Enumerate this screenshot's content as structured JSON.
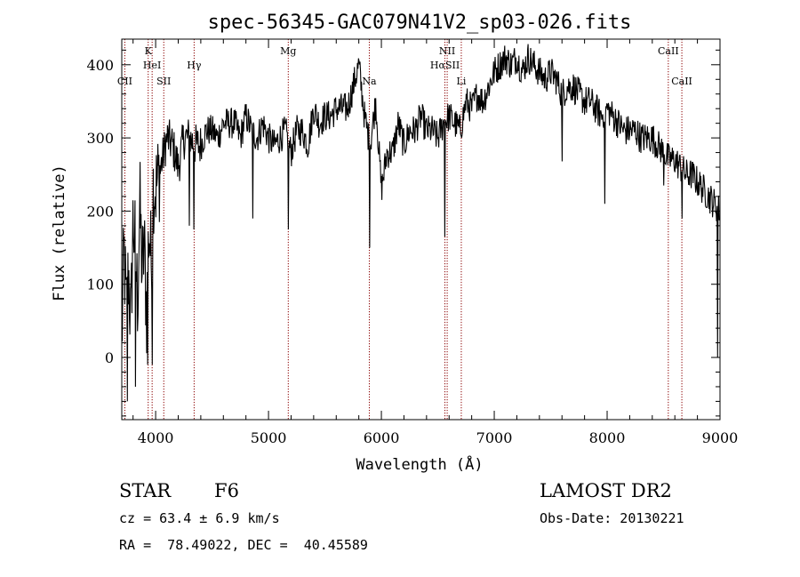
{
  "chart_data": {
    "type": "line",
    "title": "spec-56345-GAC079N41V2_sp03-026.fits",
    "xlabel": "Wavelength (Å)",
    "ylabel": "Flux (relative)",
    "xlim": [
      3700,
      9000
    ],
    "ylim": [
      -85,
      435
    ],
    "x_ticks": [
      4000,
      5000,
      6000,
      7000,
      8000,
      9000
    ],
    "y_ticks": [
      0,
      100,
      200,
      300,
      400
    ],
    "grid": false,
    "series": [
      {
        "x": [
          3700,
          3720,
          3740,
          3760,
          3780,
          3800,
          3820,
          3840,
          3860,
          3880,
          3900,
          3920,
          3940,
          3960,
          3980,
          4000,
          4030,
          4060,
          4100,
          4150,
          4200,
          4250,
          4300,
          4350,
          4400,
          4450,
          4500,
          4550,
          4600,
          4650,
          4700,
          4750,
          4800,
          4850,
          4900,
          4950,
          5000,
          5050,
          5100,
          5150,
          5200,
          5250,
          5300,
          5350,
          5400,
          5450,
          5500,
          5550,
          5600,
          5650,
          5700,
          5750,
          5800,
          5850,
          5900,
          5950,
          6000,
          6050,
          6100,
          6150,
          6200,
          6250,
          6300,
          6350,
          6400,
          6450,
          6500,
          6550,
          6600,
          6650,
          6700,
          6750,
          6800,
          6850,
          6900,
          6950,
          7000,
          7050,
          7100,
          7150,
          7200,
          7250,
          7300,
          7350,
          7400,
          7450,
          7500,
          7550,
          7600,
          7650,
          7700,
          7750,
          7800,
          7850,
          7900,
          7950,
          8000,
          8050,
          8100,
          8150,
          8200,
          8250,
          8300,
          8350,
          8400,
          8450,
          8500,
          8550,
          8600,
          8650,
          8700,
          8750,
          8800,
          8850,
          8900,
          8950,
          9000
        ],
        "values": [
          20,
          150,
          60,
          120,
          40,
          190,
          150,
          80,
          210,
          120,
          150,
          60,
          180,
          130,
          240,
          230,
          250,
          270,
          300,
          290,
          260,
          300,
          300,
          290,
          290,
          310,
          310,
          300,
          320,
          320,
          320,
          300,
          330,
          310,
          300,
          320,
          300,
          290,
          300,
          310,
          280,
          310,
          310,
          290,
          340,
          320,
          330,
          330,
          340,
          340,
          340,
          370,
          400,
          330,
          290,
          350,
          230,
          280,
          280,
          320,
          290,
          310,
          310,
          330,
          310,
          310,
          300,
          320,
          330,
          320,
          310,
          350,
          340,
          360,
          350,
          370,
          390,
          400,
          410,
          400,
          410,
          390,
          410,
          400,
          390,
          380,
          390,
          380,
          360,
          370,
          370,
          360,
          350,
          350,
          340,
          330,
          340,
          330,
          320,
          310,
          310,
          310,
          300,
          300,
          300,
          290,
          280,
          270,
          270,
          260,
          250,
          250,
          240,
          230,
          220,
          210,
          200
        ]
      }
    ],
    "spectral_lines": [
      {
        "label": "CII",
        "x": 3727,
        "row": 3
      },
      {
        "label": "K",
        "x": 3934,
        "row": 1
      },
      {
        "label": "HeI",
        "x": 3969,
        "row": 2
      },
      {
        "label": "SII",
        "x": 4072,
        "row": 3
      },
      {
        "label": "Hγ",
        "x": 4341,
        "row": 2
      },
      {
        "label": "Mg",
        "x": 5175,
        "row": 1
      },
      {
        "label": "Na",
        "x": 5893,
        "row": 3
      },
      {
        "label": "NII",
        "x": 6583,
        "row": 1
      },
      {
        "label": "HαSII",
        "x": 6563,
        "row": 2
      },
      {
        "label": "Li",
        "x": 6708,
        "row": 3
      },
      {
        "label": "CaII",
        "x": 8542,
        "row": 1
      },
      {
        "label": "CaII",
        "x": 8662,
        "row": 3
      }
    ],
    "absorption_dips": [
      {
        "x": 3750,
        "value": -60
      },
      {
        "x": 3820,
        "value": -40
      },
      {
        "x": 3930,
        "value": -10
      },
      {
        "x": 3970,
        "value": -10
      },
      {
        "x": 4300,
        "value": 180
      },
      {
        "x": 4340,
        "value": 175
      },
      {
        "x": 4860,
        "value": 190
      },
      {
        "x": 5175,
        "value": 175
      },
      {
        "x": 5895,
        "value": 150
      },
      {
        "x": 6563,
        "value": 165
      },
      {
        "x": 7600,
        "value": 268
      },
      {
        "x": 7980,
        "value": 210
      },
      {
        "x": 8500,
        "value": 235
      },
      {
        "x": 8662,
        "value": 190
      },
      {
        "x": 8980,
        "value": 0
      }
    ]
  },
  "info": {
    "object_class": "STAR",
    "subclass": "F6",
    "survey": "LAMOST DR2",
    "redshift_line": "cz = 63.4 ± 6.9 km/s",
    "obs_date": "Obs-Date: 20130221",
    "coords": "RA =  78.49022, DEC =  40.45589"
  }
}
